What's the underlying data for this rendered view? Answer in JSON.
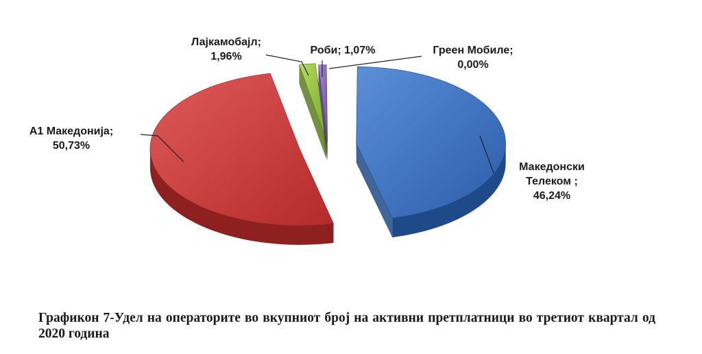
{
  "chart_data": {
    "type": "pie",
    "title": "",
    "slices": [
      {
        "label": "Македонски Телеком ;",
        "value": 46.24,
        "value_text": "46,24%",
        "color": "#3a6fbf"
      },
      {
        "label": "А1 Македонија;",
        "value": 50.73,
        "value_text": "50,73%",
        "color": "#c8393a"
      },
      {
        "label": "Лајкамобајл;",
        "value": 1.96,
        "value_text": "1,96%",
        "color": "#93bf3a"
      },
      {
        "label": "Роби;",
        "value": 1.07,
        "value_text": "1,07%",
        "color": "#8060b0"
      },
      {
        "label": "Греен Мобиле;",
        "value": 0.0,
        "value_text": "0,00%",
        "color": "#4aa3c8"
      }
    ],
    "legend": "none",
    "style": "3d-exploded"
  },
  "caption": "Графикон 7-Удел на операторите во вкупниот број на активни претплатници во третиот квартал од 2020 година"
}
